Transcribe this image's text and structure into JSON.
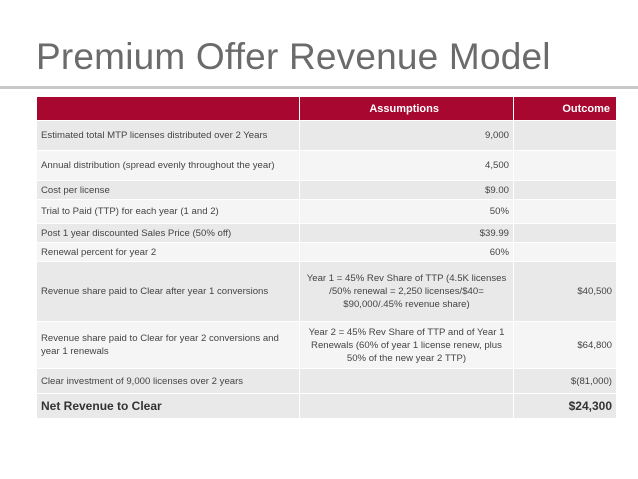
{
  "title": "Premium Offer Revenue Model",
  "table": {
    "headers": [
      "",
      "Assumptions",
      "Outcome"
    ],
    "rows": [
      {
        "label": "Estimated total MTP licenses distributed over  2 Years",
        "assumption": "9,000",
        "outcome": ""
      },
      {
        "label": "Annual distribution (spread evenly throughout the year)",
        "assumption": "4,500",
        "outcome": ""
      },
      {
        "label": "Cost per license",
        "assumption": "$9.00",
        "outcome": ""
      },
      {
        "label": "Trial to Paid (TTP) for each year (1 and 2)",
        "assumption": "50%",
        "outcome": ""
      },
      {
        "label": "Post 1 year discounted Sales Price (50% off)",
        "assumption": "$39.99",
        "outcome": ""
      },
      {
        "label": "Renewal percent for year 2",
        "assumption": "60%",
        "outcome": ""
      },
      {
        "label": "Revenue share paid to Clear after year 1 conversions",
        "assumption": "Year 1 = 45% Rev Share of TTP (4.5K licenses /50% renewal = 2,250 licenses/$40= $90,000/.45% revenue share)",
        "outcome": "$40,500"
      },
      {
        "label": "Revenue share paid to Clear for year 2 conversions and year 1 renewals",
        "assumption": "Year 2 = 45% Rev Share of TTP and of Year 1 Renewals (60% of year 1 license renew, plus 50% of the new year 2 TTP)",
        "outcome": "$64,800"
      },
      {
        "label": "Clear investment  of 9,000 licenses over  2 years",
        "assumption": "",
        "outcome": "$(81,000)"
      },
      {
        "label": "Net Revenue to Clear",
        "assumption": "",
        "outcome": "$24,300"
      }
    ]
  }
}
